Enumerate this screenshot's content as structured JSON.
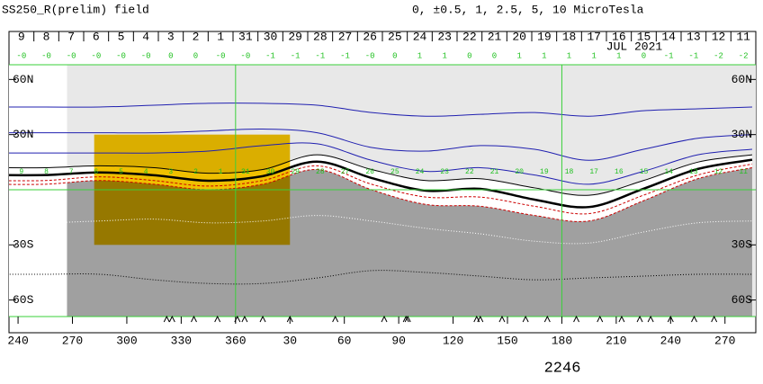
{
  "chart_data": {
    "type": "contour-map",
    "title": "SS250_R(prelim) field",
    "subtitle": "0, ±0.5, 1, 2.5, 5, 10 MicroTesla",
    "date_label": "JUL 2021",
    "footer": "2246",
    "days": [
      "9",
      "8",
      "7",
      "6",
      "5",
      "4",
      "3",
      "2",
      "1",
      "31",
      "30",
      "29",
      "28",
      "27",
      "26",
      "25",
      "24",
      "23",
      "22",
      "21",
      "20",
      "19",
      "18",
      "17",
      "16",
      "15",
      "14",
      "13",
      "12",
      "11"
    ],
    "day_values": [
      "-0",
      "-0",
      "-0",
      "-0",
      "-0",
      "-0",
      "0",
      "0",
      "-0",
      "-0",
      "-1",
      "-1",
      "-1",
      "-1",
      "-0",
      "0",
      "1",
      "1",
      "0",
      "0",
      "1",
      "1",
      "1",
      "1",
      "1",
      "0",
      "-1",
      "-1",
      "-2",
      "-2"
    ],
    "xlim": [
      235,
      647
    ],
    "ylim": [
      -69,
      68
    ],
    "xticks": [
      {
        "value": 240,
        "label": "240"
      },
      {
        "value": 270,
        "label": "270"
      },
      {
        "value": 300,
        "label": "300"
      },
      {
        "value": 330,
        "label": "330"
      },
      {
        "value": 360,
        "label": "360"
      },
      {
        "value": 390,
        "label": "30"
      },
      {
        "value": 420,
        "label": "60"
      },
      {
        "value": 450,
        "label": "90"
      },
      {
        "value": 480,
        "label": "120"
      },
      {
        "value": 510,
        "label": "150"
      },
      {
        "value": 540,
        "label": "180"
      },
      {
        "value": 570,
        "label": "210"
      },
      {
        "value": 600,
        "label": "240"
      },
      {
        "value": 630,
        "label": "270"
      }
    ],
    "yticks": [
      {
        "value": 60,
        "label": "60N"
      },
      {
        "value": 30,
        "label": "30N"
      },
      {
        "value": -30,
        "label": "30S"
      },
      {
        "value": -60,
        "label": "60S"
      }
    ],
    "grid_x": [
      360,
      540
    ],
    "grid_y": [
      0
    ],
    "coverage_xlim": [
      267,
      647
    ],
    "north_color": "#e8e8e8",
    "box": {
      "xlim": [
        282,
        390
      ],
      "ylim": [
        -30,
        30
      ],
      "color": "#f0c000"
    },
    "x": [
      225,
      255,
      285,
      315,
      345,
      375,
      405,
      435,
      465,
      495,
      525,
      555,
      585,
      615,
      645
    ],
    "series": [
      {
        "color": "#000000",
        "width": 1,
        "dash": "none",
        "fill_below": "#ffffff",
        "values": [
          12,
          12,
          13,
          12,
          9,
          11,
          19,
          11,
          5,
          6,
          1,
          -3,
          5,
          15,
          19
        ]
      },
      {
        "color": "#cc0000",
        "width": 1,
        "dash": "3 2",
        "fill_below": "#a0a0a0",
        "values": [
          3,
          3,
          5,
          3,
          0,
          3,
          11,
          0,
          -8,
          -9,
          -14,
          -17,
          -6,
          6,
          12
        ]
      },
      {
        "color": "#cc0000",
        "width": 1,
        "dash": "3 2",
        "values": [
          5,
          5,
          7,
          5,
          2,
          5,
          13,
          3,
          -4,
          -4,
          -9,
          -13,
          -3,
          8,
          14
        ]
      },
      {
        "color": "#2020b0",
        "width": 1,
        "dash": "none",
        "values": [
          45,
          45,
          45,
          46,
          47,
          47,
          46,
          42,
          40,
          41,
          42,
          40,
          43,
          44,
          45
        ]
      },
      {
        "color": "#2020b0",
        "width": 1,
        "dash": "none",
        "values": [
          31,
          31,
          31,
          31,
          32,
          33,
          31,
          23,
          21,
          24,
          22,
          16,
          22,
          28,
          30
        ]
      },
      {
        "color": "#2020b0",
        "width": 1,
        "dash": "none",
        "values": [
          20,
          20,
          20,
          20,
          21,
          24,
          25,
          16,
          10,
          12,
          8,
          3,
          10,
          19,
          22
        ]
      },
      {
        "color": "#000000",
        "width": 2.5,
        "dash": "none",
        "values": [
          8,
          8,
          9.4,
          7.9,
          4.9,
          7.4,
          15.3,
          6.4,
          -0.5,
          0.5,
          -5.4,
          -9.4,
          0.5,
          11.3,
          16.3
        ]
      },
      {
        "color": "#ffffff",
        "width": 1,
        "dash": "1 2",
        "values": [
          -18,
          -18,
          -17,
          -16,
          -18,
          -17,
          -14,
          -17,
          -21,
          -24,
          -28,
          -29,
          -23,
          -18,
          -17
        ]
      },
      {
        "color": "#000000",
        "width": 1,
        "dash": "1 2",
        "values": [
          -46,
          -46,
          -46,
          -49,
          -51,
          -51,
          -48,
          -44,
          -45,
          -47,
          -49,
          -48,
          -47,
          -46,
          -46
        ]
      }
    ],
    "track_series": 6,
    "markers_x": [
      322,
      325,
      337,
      350,
      361,
      365,
      375,
      390,
      415,
      442,
      454,
      455,
      493,
      495,
      507,
      520,
      532,
      548,
      561,
      573,
      583,
      589,
      600,
      613,
      624
    ]
  }
}
